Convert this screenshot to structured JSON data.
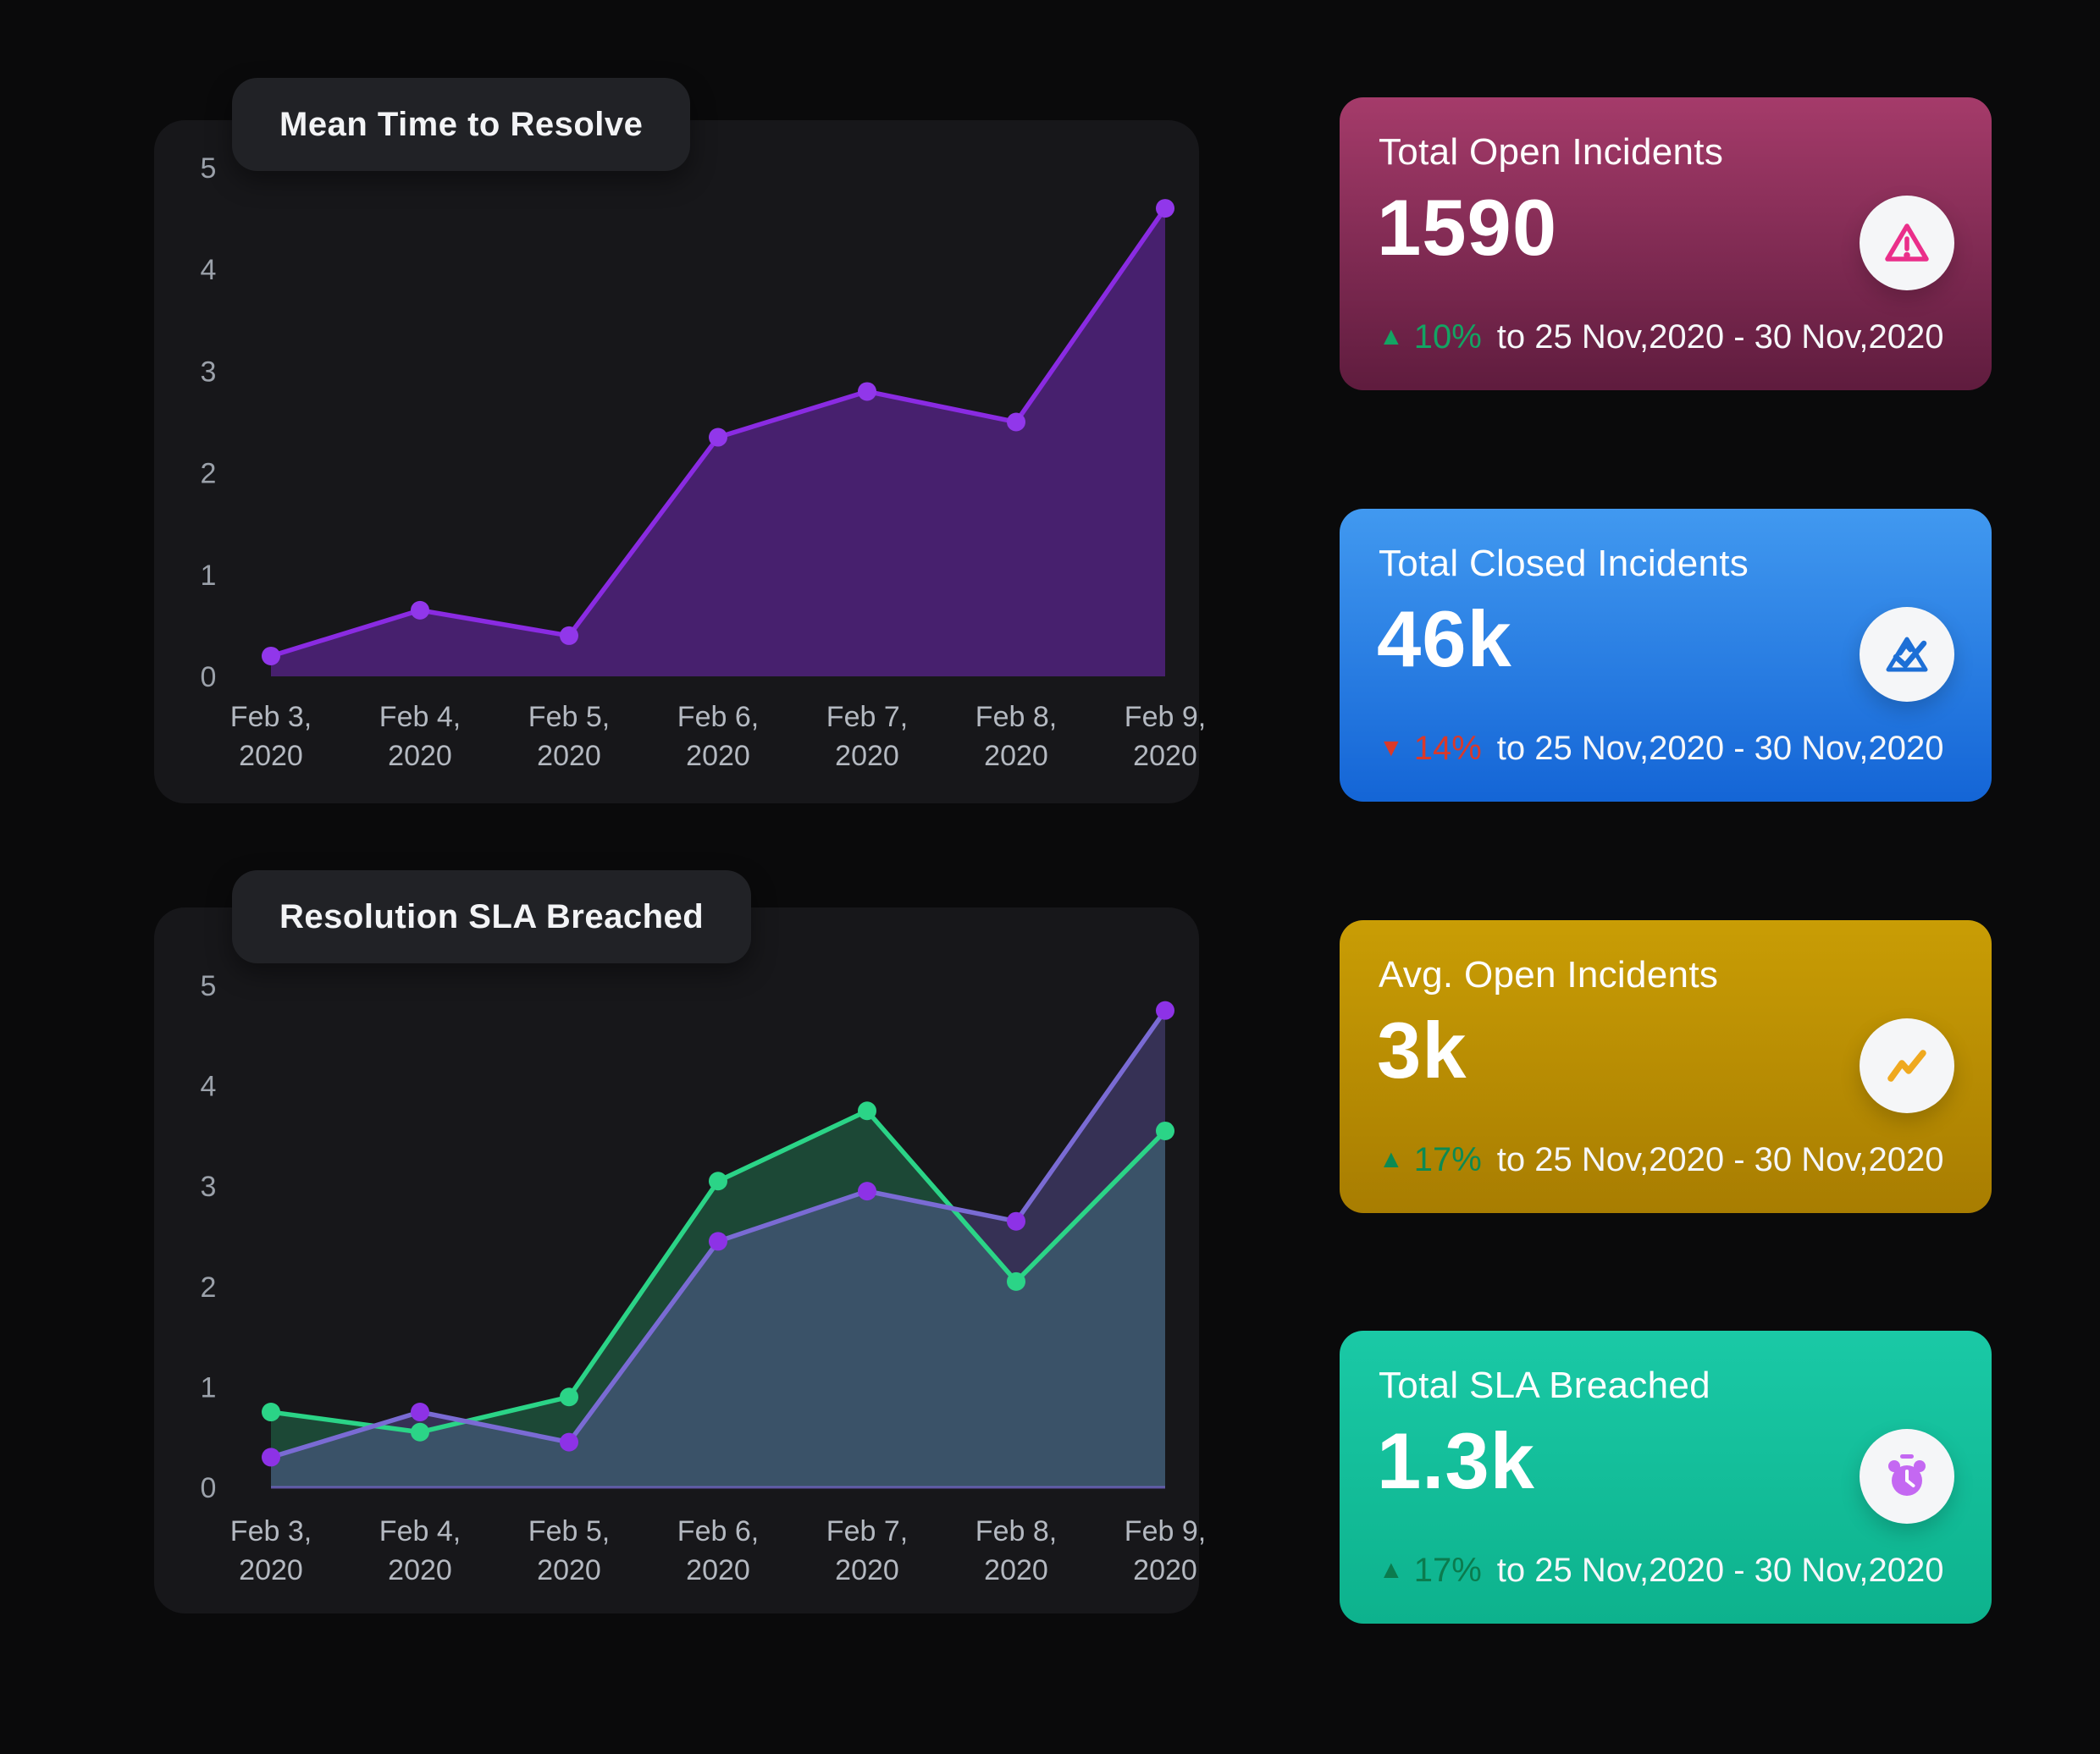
{
  "theme": {
    "page_bg": "#0a0a0b",
    "panel_bg": "#17171a",
    "pill_bg": "#212226",
    "axis_tick_color": "#9ba1aa",
    "axis_label_color": "#b4b9c1"
  },
  "chart_data": [
    {
      "type": "area",
      "title": "Mean Time to Resolve",
      "categories": [
        "Feb 3, 2020",
        "Feb 4, 2020",
        "Feb 5, 2020",
        "Feb 6, 2020",
        "Feb 7, 2020",
        "Feb 8, 2020",
        "Feb 9, 2020"
      ],
      "ylim": [
        0,
        5
      ],
      "yticks": [
        0,
        1,
        2,
        3,
        4,
        5
      ],
      "grid": false,
      "legend": false,
      "series": [
        {
          "name": "mean-time-to-resolve",
          "color": "#8a2be2",
          "dot_color": "#9137ea",
          "fill": "#47206e",
          "values": [
            0.2,
            0.65,
            0.4,
            2.35,
            2.8,
            2.5,
            4.6
          ]
        }
      ]
    },
    {
      "type": "area",
      "title": "Resolution SLA Breached",
      "categories": [
        "Feb 3, 2020",
        "Feb 4, 2020",
        "Feb 5, 2020",
        "Feb 6, 2020",
        "Feb 7, 2020",
        "Feb 8, 2020",
        "Feb 9, 2020"
      ],
      "ylim": [
        0,
        5
      ],
      "yticks": [
        0,
        1,
        2,
        3,
        4,
        5
      ],
      "grid": false,
      "legend": false,
      "series": [
        {
          "name": "sla-breached-green",
          "color": "#2bd487",
          "dot_color": "#2bd487",
          "fill": "rgba(43,212,135,0.26)",
          "values": [
            0.75,
            0.55,
            0.9,
            3.05,
            3.75,
            2.05,
            3.55
          ]
        },
        {
          "name": "sla-breached-purple",
          "color": "#7a6bd4",
          "dot_color": "#8d32e6",
          "fill": "rgba(122,107,212,0.32)",
          "baseline_stroke": "rgba(122,107,212,0.7)",
          "values": [
            0.3,
            0.75,
            0.45,
            2.45,
            2.95,
            2.65,
            4.75
          ]
        }
      ]
    }
  ],
  "cards": [
    {
      "title": "Total Open Incidents",
      "value": "1590",
      "delta_dir": "up",
      "delta": "10%",
      "period": "to 25 Nov,2020 - 30 Nov,2020",
      "delta_color": "#13a463",
      "bg_top": "#a53b6a",
      "bg_bottom": "#5f1c3e",
      "icon": "warning-triangle",
      "icon_color": "#ea2f8a"
    },
    {
      "title": "Total Closed Incidents",
      "value": "46k",
      "delta_dir": "down",
      "delta": "14%",
      "period": "to 25 Nov,2020 - 30 Nov,2020",
      "delta_color": "#da392a",
      "bg_top": "#4199f0",
      "bg_bottom": "#1465d6",
      "icon": "check-triangle",
      "icon_color": "#1d6fd6"
    },
    {
      "title": "Avg. Open Incidents",
      "value": "3k",
      "delta_dir": "up",
      "delta": "17%",
      "period": "to 25 Nov,2020 - 30 Nov,2020",
      "delta_color": "#0c8a52",
      "bg_top": "#c99d05",
      "bg_bottom": "#a87d01",
      "icon": "trend-zigzag",
      "icon_color": "#efa91f"
    },
    {
      "title": "Total SLA Breached",
      "value": "1.3k",
      "delta_dir": "up",
      "delta": "17%",
      "period": "to 25 Nov,2020 - 30 Nov,2020",
      "delta_color": "#0b7b4e",
      "bg_top": "#1ac9a6",
      "bg_bottom": "#0db28d",
      "icon": "alarm-clock",
      "icon_color": "#c468f2"
    }
  ]
}
